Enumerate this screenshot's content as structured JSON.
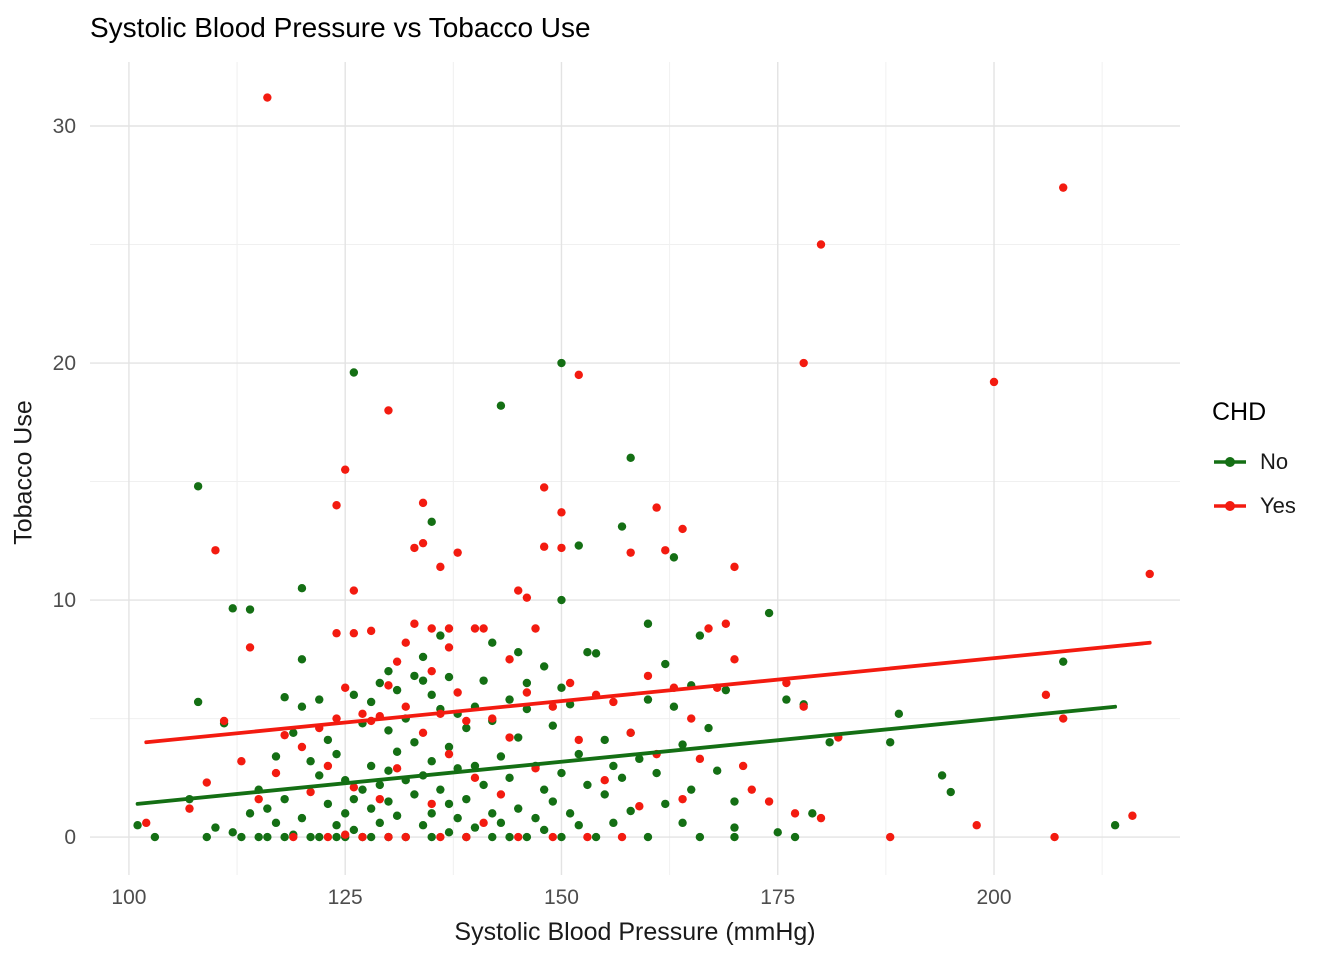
{
  "chart_data": {
    "type": "scatter",
    "title": "Systolic Blood Pressure vs Tobacco Use",
    "xlabel": "Systolic Blood Pressure (mmHg)",
    "ylabel": "Tobacco Use",
    "xlim": [
      95.5,
      221.5
    ],
    "ylim": [
      -1.6,
      32.7
    ],
    "x_ticks": [
      100,
      125,
      150,
      175,
      200
    ],
    "y_ticks": [
      0,
      10,
      20,
      30
    ],
    "x_minor": [
      112.5,
      137.5,
      162.5,
      187.5,
      212.5
    ],
    "y_minor": [
      5,
      15,
      25
    ],
    "grid": true,
    "grid_major_color": "#e3e3e3",
    "grid_minor_color": "#f0f0f0",
    "background": "#ffffff",
    "legend": {
      "title": "CHD",
      "position": "right",
      "entries": [
        {
          "label": "No",
          "color": "#146f14"
        },
        {
          "label": "Yes",
          "color": "#f31b10"
        }
      ]
    },
    "series": [
      {
        "name": "No",
        "color": "#146f14",
        "trend": {
          "x": [
            101,
            214
          ],
          "y": [
            1.4,
            5.5
          ]
        },
        "points": [
          [
            101,
            0.5
          ],
          [
            103,
            0
          ],
          [
            107,
            1.6
          ],
          [
            108,
            14.8
          ],
          [
            108,
            5.7
          ],
          [
            109,
            0
          ],
          [
            110,
            0.4
          ],
          [
            111,
            4.8
          ],
          [
            112,
            9.65
          ],
          [
            112,
            0.2
          ],
          [
            113,
            0
          ],
          [
            114,
            9.6
          ],
          [
            114,
            1
          ],
          [
            115,
            2
          ],
          [
            115,
            0
          ],
          [
            116,
            1.2
          ],
          [
            116,
            0
          ],
          [
            117,
            3.4
          ],
          [
            117,
            0.6
          ],
          [
            118,
            5.9
          ],
          [
            118,
            1.6
          ],
          [
            118,
            0
          ],
          [
            119,
            4.4
          ],
          [
            119,
            0.1
          ],
          [
            120,
            10.5
          ],
          [
            120,
            7.5
          ],
          [
            120,
            5.5
          ],
          [
            120,
            0.8
          ],
          [
            121,
            3.2
          ],
          [
            121,
            0
          ],
          [
            122,
            5.8
          ],
          [
            122,
            2.6
          ],
          [
            122,
            0
          ],
          [
            123,
            4.1
          ],
          [
            123,
            1.4
          ],
          [
            124,
            3.5
          ],
          [
            124,
            0.5
          ],
          [
            124,
            0
          ],
          [
            125,
            2.4
          ],
          [
            125,
            1
          ],
          [
            125,
            0
          ],
          [
            126,
            19.6
          ],
          [
            126,
            6
          ],
          [
            126,
            1.6
          ],
          [
            126,
            0.3
          ],
          [
            127,
            4.8
          ],
          [
            127,
            2
          ],
          [
            127,
            0
          ],
          [
            128,
            5.7
          ],
          [
            128,
            3
          ],
          [
            128,
            1.2
          ],
          [
            128,
            0
          ],
          [
            129,
            6.5
          ],
          [
            129,
            2.2
          ],
          [
            129,
            0.6
          ],
          [
            130,
            7
          ],
          [
            130,
            4.5
          ],
          [
            130,
            2.8
          ],
          [
            130,
            1.5
          ],
          [
            130,
            0
          ],
          [
            131,
            6.2
          ],
          [
            131,
            3.6
          ],
          [
            131,
            0.9
          ],
          [
            132,
            5
          ],
          [
            132,
            2.4
          ],
          [
            132,
            0
          ],
          [
            133,
            6.8
          ],
          [
            133,
            4
          ],
          [
            133,
            1.8
          ],
          [
            134,
            7.6
          ],
          [
            134,
            6.6
          ],
          [
            134,
            2.6
          ],
          [
            134,
            0.5
          ],
          [
            135,
            13.3
          ],
          [
            135,
            6
          ],
          [
            135,
            3.2
          ],
          [
            135,
            1
          ],
          [
            135,
            0
          ],
          [
            136,
            8.5
          ],
          [
            136,
            5.4
          ],
          [
            136,
            2
          ],
          [
            137,
            6.75
          ],
          [
            137,
            3.8
          ],
          [
            137,
            1.4
          ],
          [
            137,
            0.2
          ],
          [
            138,
            5.2
          ],
          [
            138,
            2.9
          ],
          [
            138,
            0.8
          ],
          [
            139,
            4.6
          ],
          [
            139,
            1.6
          ],
          [
            139,
            0
          ],
          [
            140,
            5.5
          ],
          [
            140,
            3
          ],
          [
            140,
            0.4
          ],
          [
            141,
            6.6
          ],
          [
            141,
            2.2
          ],
          [
            142,
            8.2
          ],
          [
            142,
            4.9
          ],
          [
            142,
            1
          ],
          [
            142,
            0
          ],
          [
            143,
            18.2
          ],
          [
            143,
            3.4
          ],
          [
            143,
            0.6
          ],
          [
            144,
            5.8
          ],
          [
            144,
            2.5
          ],
          [
            144,
            0
          ],
          [
            145,
            7.8
          ],
          [
            145,
            4.2
          ],
          [
            145,
            1.2
          ],
          [
            146,
            6.5
          ],
          [
            146,
            5.4
          ],
          [
            146,
            0
          ],
          [
            147,
            3
          ],
          [
            147,
            0.8
          ],
          [
            148,
            7.2
          ],
          [
            148,
            2
          ],
          [
            148,
            0.3
          ],
          [
            149,
            4.7
          ],
          [
            149,
            1.5
          ],
          [
            150,
            20
          ],
          [
            150,
            10
          ],
          [
            150,
            6.3
          ],
          [
            150,
            2.7
          ],
          [
            150,
            0
          ],
          [
            151,
            5.6
          ],
          [
            151,
            1
          ],
          [
            152,
            12.3
          ],
          [
            152,
            3.5
          ],
          [
            152,
            0.5
          ],
          [
            153,
            7.8
          ],
          [
            153,
            2.2
          ],
          [
            154,
            7.75
          ],
          [
            154,
            0
          ],
          [
            155,
            4.1
          ],
          [
            155,
            1.8
          ],
          [
            156,
            3
          ],
          [
            156,
            0.6
          ],
          [
            157,
            13.1
          ],
          [
            157,
            2.5
          ],
          [
            158,
            16
          ],
          [
            158,
            4.4
          ],
          [
            158,
            1.1
          ],
          [
            159,
            3.3
          ],
          [
            160,
            9
          ],
          [
            160,
            5.8
          ],
          [
            160,
            0
          ],
          [
            161,
            2.7
          ],
          [
            162,
            7.3
          ],
          [
            162,
            1.4
          ],
          [
            163,
            11.8
          ],
          [
            163,
            5.5
          ],
          [
            164,
            3.9
          ],
          [
            164,
            0.6
          ],
          [
            165,
            6.4
          ],
          [
            165,
            2
          ],
          [
            166,
            8.5
          ],
          [
            166,
            0
          ],
          [
            167,
            4.6
          ],
          [
            168,
            2.8
          ],
          [
            169,
            6.2
          ],
          [
            170,
            1.5
          ],
          [
            170,
            0.4
          ],
          [
            170,
            0
          ],
          [
            174,
            9.45
          ],
          [
            175,
            0.2
          ],
          [
            176,
            5.8
          ],
          [
            177,
            0
          ],
          [
            178,
            5.6
          ],
          [
            179,
            1
          ],
          [
            181,
            4
          ],
          [
            188,
            4
          ],
          [
            189,
            5.2
          ],
          [
            194,
            2.6
          ],
          [
            195,
            1.9
          ],
          [
            208,
            7.4
          ],
          [
            214,
            0.5
          ]
        ]
      },
      {
        "name": "Yes",
        "color": "#f31b10",
        "trend": {
          "x": [
            102,
            218
          ],
          "y": [
            4.0,
            8.2
          ]
        },
        "points": [
          [
            102,
            0.6
          ],
          [
            107,
            1.2
          ],
          [
            109,
            2.3
          ],
          [
            110,
            12.1
          ],
          [
            111,
            4.9
          ],
          [
            113,
            3.2
          ],
          [
            114,
            8
          ],
          [
            115,
            1.6
          ],
          [
            116,
            31.2
          ],
          [
            117,
            2.7
          ],
          [
            118,
            4.3
          ],
          [
            119,
            0
          ],
          [
            120,
            3.8
          ],
          [
            121,
            1.9
          ],
          [
            122,
            4.6
          ],
          [
            123,
            3
          ],
          [
            123,
            0
          ],
          [
            124,
            14
          ],
          [
            124,
            8.6
          ],
          [
            124,
            5
          ],
          [
            125,
            15.5
          ],
          [
            125,
            6.3
          ],
          [
            125,
            0.1
          ],
          [
            126,
            10.4
          ],
          [
            126,
            8.6
          ],
          [
            126,
            2.1
          ],
          [
            127,
            5.2
          ],
          [
            127,
            0
          ],
          [
            128,
            8.7
          ],
          [
            128,
            4.9
          ],
          [
            129,
            5.1
          ],
          [
            129,
            1.6
          ],
          [
            130,
            18
          ],
          [
            130,
            6.4
          ],
          [
            130,
            0
          ],
          [
            131,
            7.4
          ],
          [
            131,
            2.9
          ],
          [
            132,
            8.2
          ],
          [
            132,
            5.5
          ],
          [
            132,
            0
          ],
          [
            133,
            12.2
          ],
          [
            133,
            9
          ],
          [
            134,
            14.1
          ],
          [
            134,
            12.4
          ],
          [
            134,
            4.4
          ],
          [
            135,
            8.8
          ],
          [
            135,
            7
          ],
          [
            135,
            1.4
          ],
          [
            136,
            11.4
          ],
          [
            136,
            5.2
          ],
          [
            136,
            0
          ],
          [
            137,
            8.8
          ],
          [
            137,
            8
          ],
          [
            137,
            3.5
          ],
          [
            138,
            12
          ],
          [
            138,
            6.1
          ],
          [
            139,
            4.9
          ],
          [
            139,
            0
          ],
          [
            140,
            8.8
          ],
          [
            140,
            2.5
          ],
          [
            141,
            8.8
          ],
          [
            141,
            0.6
          ],
          [
            142,
            5
          ],
          [
            143,
            1.8
          ],
          [
            144,
            7.5
          ],
          [
            144,
            4.2
          ],
          [
            145,
            10.4
          ],
          [
            145,
            0
          ],
          [
            146,
            10.1
          ],
          [
            146,
            6.1
          ],
          [
            147,
            8.8
          ],
          [
            147,
            2.9
          ],
          [
            148,
            14.75
          ],
          [
            148,
            12.25
          ],
          [
            149,
            5.5
          ],
          [
            149,
            0
          ],
          [
            150,
            13.7
          ],
          [
            150,
            12.2
          ],
          [
            151,
            6.5
          ],
          [
            152,
            19.5
          ],
          [
            152,
            4.1
          ],
          [
            153,
            0
          ],
          [
            154,
            6
          ],
          [
            155,
            2.4
          ],
          [
            156,
            5.7
          ],
          [
            157,
            0
          ],
          [
            158,
            12
          ],
          [
            158,
            4.4
          ],
          [
            159,
            1.3
          ],
          [
            160,
            6.8
          ],
          [
            161,
            13.9
          ],
          [
            161,
            3.5
          ],
          [
            162,
            12.1
          ],
          [
            163,
            6.3
          ],
          [
            164,
            13
          ],
          [
            164,
            1.6
          ],
          [
            165,
            5
          ],
          [
            166,
            3.3
          ],
          [
            167,
            8.8
          ],
          [
            168,
            6.3
          ],
          [
            169,
            9
          ],
          [
            170,
            11.4
          ],
          [
            170,
            7.5
          ],
          [
            171,
            3
          ],
          [
            172,
            2
          ],
          [
            174,
            1.5
          ],
          [
            176,
            6.5
          ],
          [
            177,
            1
          ],
          [
            178,
            20
          ],
          [
            178,
            5.5
          ],
          [
            180,
            25
          ],
          [
            180,
            0.8
          ],
          [
            182,
            4.2
          ],
          [
            188,
            0
          ],
          [
            198,
            0.5
          ],
          [
            200,
            19.2
          ],
          [
            206,
            6
          ],
          [
            207,
            0
          ],
          [
            208,
            27.4
          ],
          [
            208,
            5
          ],
          [
            216,
            0.9
          ],
          [
            218,
            11.1
          ]
        ]
      }
    ]
  }
}
